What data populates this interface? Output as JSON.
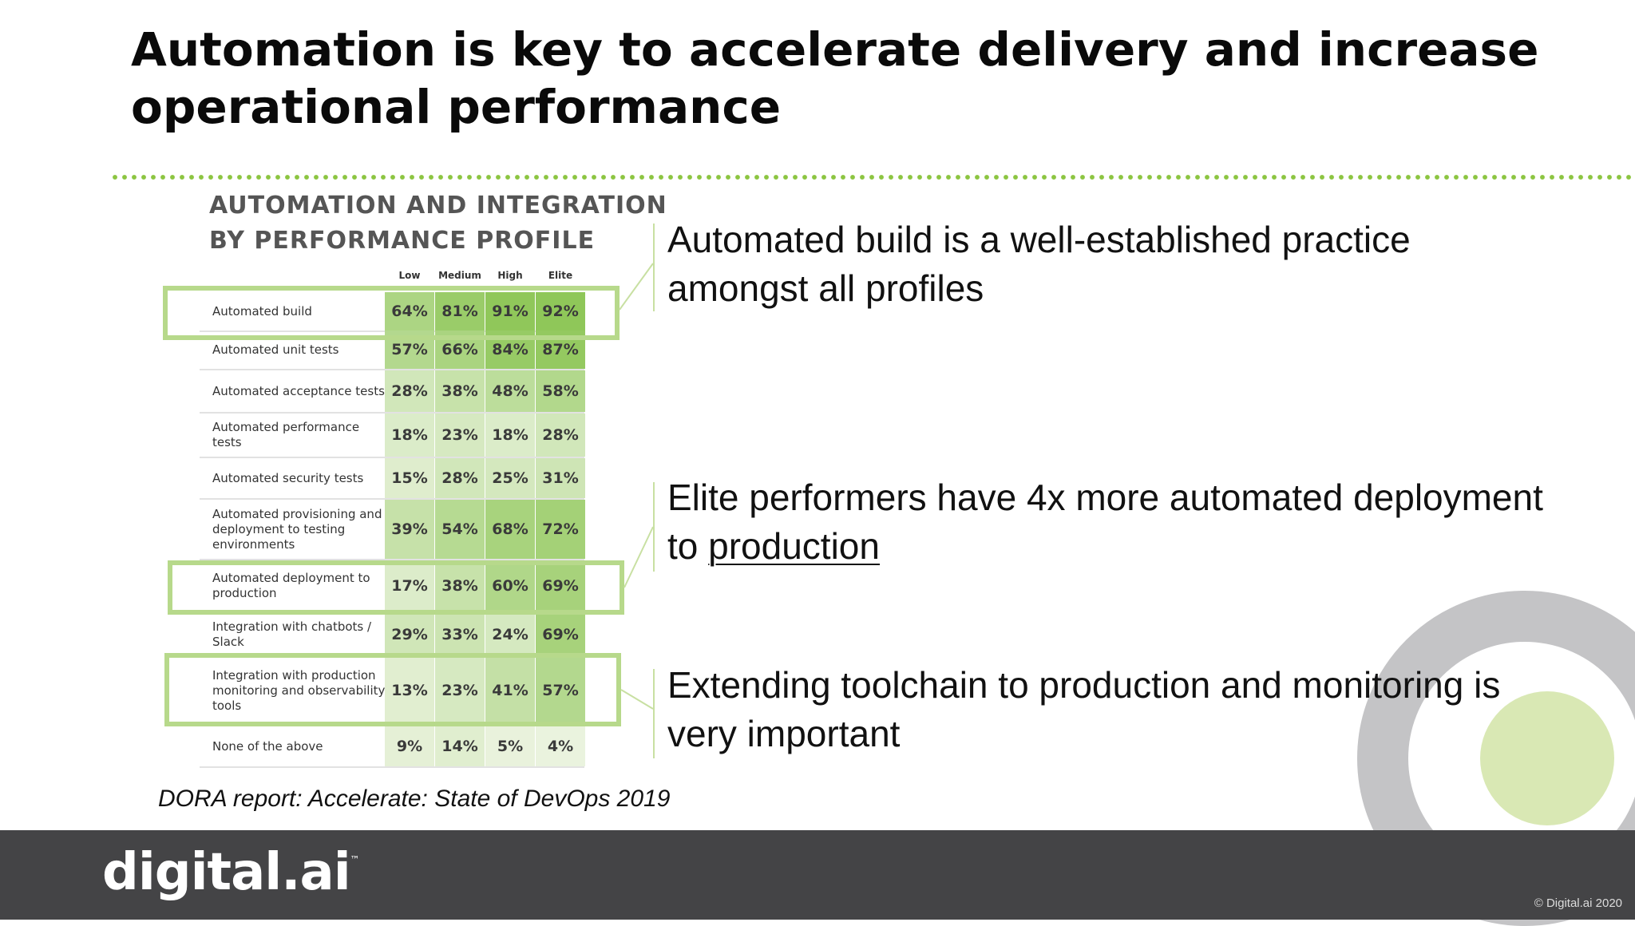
{
  "slide": {
    "title": "Automation is key to accelerate delivery and increase operational performance",
    "source": "DORA report: Accelerate: State of DevOps 2019",
    "copyright": "© Digital.ai 2020",
    "logo_text": "digital.ai",
    "logo_tm": "™"
  },
  "colors": {
    "accent_green": "#8cc541",
    "highlight_green": "#b7d98b",
    "footer_bg": "#444446",
    "deco_grey": "#c4c4c6",
    "deco_light_green": "#d9e8b4"
  },
  "table": {
    "heading": "AUTOMATION AND INTEGRATION\nBY PERFORMANCE PROFILE",
    "columns": [
      "Low",
      "Medium",
      "High",
      "Elite"
    ],
    "rows": [
      {
        "label": "Automated build",
        "values": [
          "64%",
          "81%",
          "91%",
          "92%"
        ]
      },
      {
        "label": "Automated unit tests",
        "values": [
          "57%",
          "66%",
          "84%",
          "87%"
        ]
      },
      {
        "label": "Automated acceptance tests",
        "values": [
          "28%",
          "38%",
          "48%",
          "58%"
        ]
      },
      {
        "label": "Automated performance tests",
        "values": [
          "18%",
          "23%",
          "18%",
          "28%"
        ]
      },
      {
        "label": "Automated security tests",
        "values": [
          "15%",
          "28%",
          "25%",
          "31%"
        ]
      },
      {
        "label": "Automated provisioning and deployment to testing environments",
        "values": [
          "39%",
          "54%",
          "68%",
          "72%"
        ]
      },
      {
        "label": "Automated deployment to production",
        "values": [
          "17%",
          "38%",
          "60%",
          "69%"
        ]
      },
      {
        "label": "Integration with chatbots / Slack",
        "values": [
          "29%",
          "33%",
          "24%",
          "69%"
        ]
      },
      {
        "label": "Integration with production monitoring and observability tools",
        "values": [
          "13%",
          "23%",
          "41%",
          "57%"
        ]
      },
      {
        "label": "None of the above",
        "values": [
          "9%",
          "14%",
          "5%",
          "4%"
        ]
      }
    ]
  },
  "bullets": [
    {
      "text": "Automated build is a well-established practice amongst all profiles"
    },
    {
      "text_before": "Elite performers have 4x more automated deployment to ",
      "text_underlined": "production"
    },
    {
      "text": "Extending toolchain to production and monitoring is very important"
    }
  ]
}
